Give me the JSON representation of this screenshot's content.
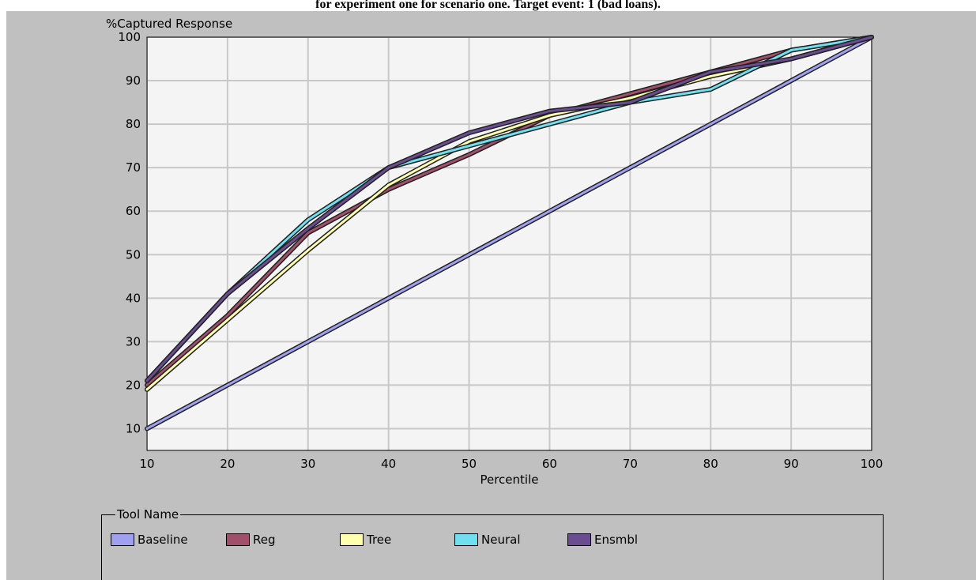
{
  "caption": "for experiment one for scenario one. Target event: 1 (bad loans).",
  "chart_data": {
    "type": "line",
    "ylabel": "%Captured Response",
    "xlabel": "Percentile",
    "x": [
      10,
      20,
      30,
      40,
      50,
      60,
      70,
      80,
      90,
      100
    ],
    "xlim": [
      10,
      100
    ],
    "ylim": [
      5,
      100
    ],
    "yticks": [
      10,
      20,
      30,
      40,
      50,
      60,
      70,
      80,
      90,
      100
    ],
    "xticks": [
      10,
      20,
      30,
      40,
      50,
      60,
      70,
      80,
      90,
      100
    ],
    "grid": true,
    "legend_title": "Tool Name",
    "legend_position": "bottom",
    "series": [
      {
        "name": "Baseline",
        "color": "#a0a0f0",
        "values": [
          10,
          20,
          30,
          40,
          50,
          60,
          70,
          80,
          90,
          100
        ]
      },
      {
        "name": "Reg",
        "color": "#a0506a",
        "values": [
          20,
          36,
          55,
          65,
          73,
          82,
          87,
          92,
          97,
          100
        ]
      },
      {
        "name": "Tree",
        "color": "#ffffb0",
        "values": [
          19,
          35,
          51,
          66,
          76,
          82,
          86,
          91,
          95,
          100
        ]
      },
      {
        "name": "Neural",
        "color": "#70e0f0",
        "values": [
          21,
          41,
          58,
          70,
          75,
          80,
          85,
          88,
          97,
          100
        ]
      },
      {
        "name": "Ensmbl",
        "color": "#6a4c90",
        "values": [
          21,
          41,
          56,
          70,
          78,
          83,
          85,
          92,
          95,
          100
        ]
      }
    ]
  }
}
